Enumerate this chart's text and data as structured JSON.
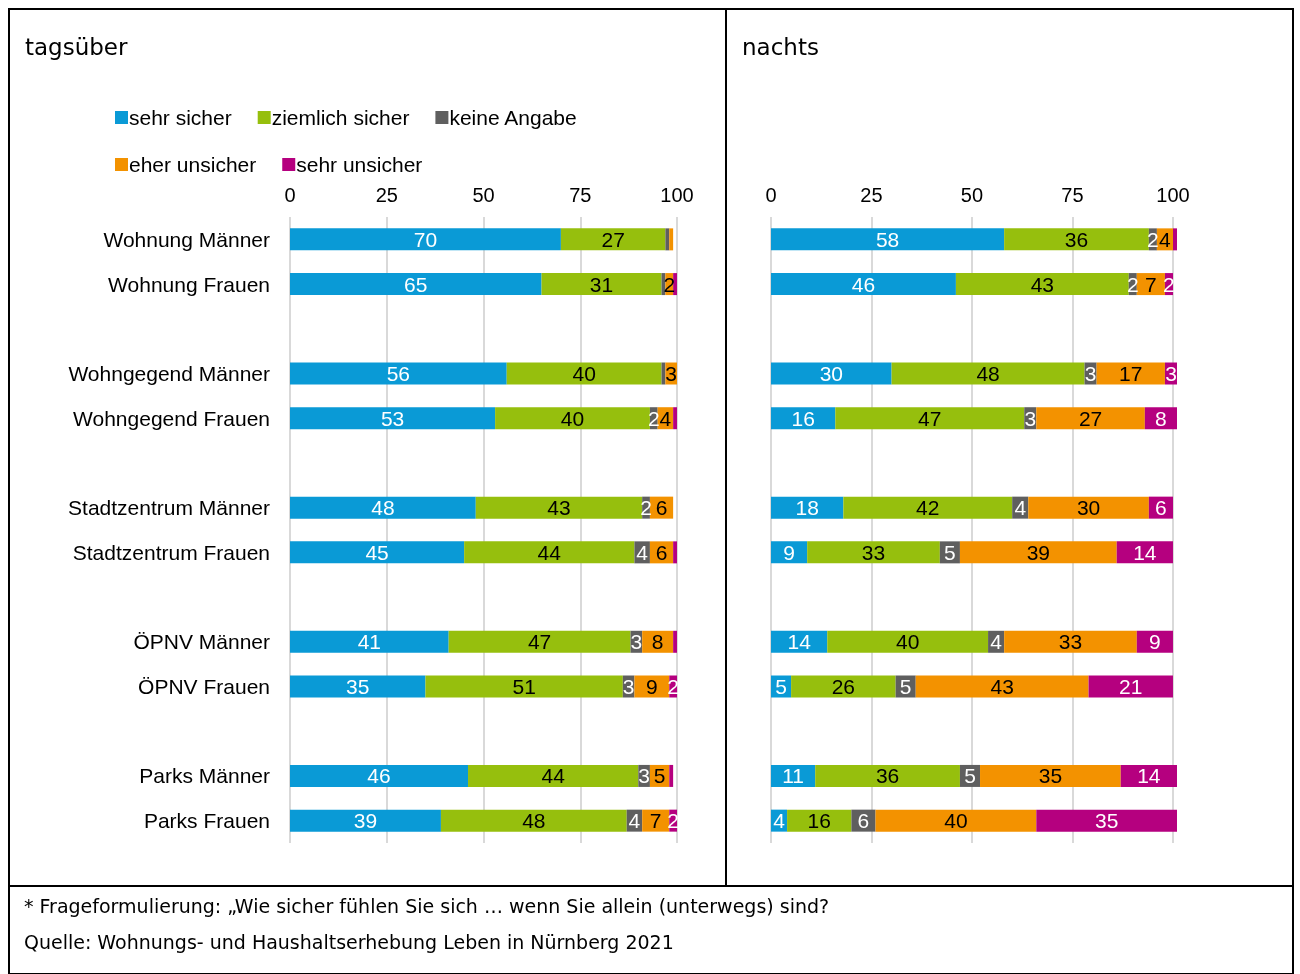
{
  "chart_data": [
    {
      "type": "bar",
      "title": "tagsüber",
      "orientation": "horizontal",
      "stacked": true,
      "grid": "x",
      "legend": "top",
      "xlim": [
        0,
        100
      ],
      "xticks": [
        0,
        25,
        50,
        75,
        100
      ],
      "categories": [
        "Wohnung Männer",
        "Wohnung Frauen",
        null,
        "Wohngegend Männer",
        "Wohngegend Frauen",
        null,
        "Stadtzentrum Männer",
        "Stadtzentrum Frauen",
        null,
        "ÖPNV Männer",
        "ÖPNV Frauen",
        null,
        "Parks Männer",
        "Parks Frauen"
      ],
      "series": [
        {
          "name": "sehr sicher",
          "color": "#0a9ad6",
          "values": [
            70,
            65,
            null,
            56,
            53,
            null,
            48,
            45,
            null,
            41,
            35,
            null,
            46,
            39
          ],
          "value_labels": [
            "70",
            "65",
            null,
            "56",
            "53",
            null,
            "48",
            "45",
            null,
            "41",
            "35",
            null,
            "46",
            "39"
          ]
        },
        {
          "name": "ziemlich sicher",
          "color": "#96bf0d",
          "values": [
            27,
            31,
            null,
            40,
            40,
            null,
            43,
            44,
            null,
            47,
            51,
            null,
            44,
            48
          ],
          "value_labels": [
            "27",
            "31",
            null,
            "40",
            "40",
            null,
            "43",
            "44",
            null,
            "47",
            "51",
            null,
            "44",
            "48"
          ]
        },
        {
          "name": "keine Angabe",
          "color": "#5f5f5f",
          "values": [
            1,
            1,
            null,
            1,
            2,
            null,
            2,
            4,
            null,
            3,
            3,
            null,
            3,
            4
          ],
          "value_labels": [
            null,
            null,
            null,
            null,
            "2",
            null,
            "2",
            "4",
            null,
            "3",
            "3",
            null,
            "3",
            "4"
          ]
        },
        {
          "name": "eher unsicher",
          "color": "#f39200",
          "values": [
            1,
            2,
            null,
            3,
            4,
            null,
            6,
            6,
            null,
            8,
            9,
            null,
            5,
            7
          ],
          "value_labels": [
            null,
            "2",
            null,
            "3",
            "4",
            null,
            "6",
            "6",
            null,
            "8",
            "9",
            null,
            "5",
            "7"
          ]
        },
        {
          "name": "sehr unsicher",
          "color": "#b5007f",
          "values": [
            0,
            1,
            null,
            0,
            1,
            null,
            0,
            1,
            null,
            1,
            2,
            null,
            1,
            2
          ],
          "value_labels": [
            null,
            null,
            null,
            null,
            null,
            null,
            null,
            null,
            null,
            null,
            "2",
            null,
            null,
            "2"
          ]
        }
      ],
      "annotations": [
        "* Frageformulierung: „Wie sicher fühlen Sie sich … wenn Sie allein (unterwegs) sind?",
        "Quelle: Wohnungs- und Haushaltserhebung Leben in Nürnberg 2021"
      ]
    },
    {
      "type": "bar",
      "title": "nachts",
      "orientation": "horizontal",
      "stacked": true,
      "grid": "x",
      "xlim": [
        0,
        101
      ],
      "xticks": [
        0,
        25,
        50,
        75,
        100
      ],
      "categories": [
        null,
        null,
        null,
        null,
        null,
        null,
        null,
        null,
        null,
        null,
        null,
        null,
        null,
        null
      ],
      "series": [
        {
          "color": "#0a9ad6",
          "values": [
            58,
            46,
            null,
            30,
            16,
            null,
            18,
            9,
            null,
            14,
            5,
            null,
            11,
            4
          ],
          "value_labels": [
            "58",
            "46",
            null,
            "30",
            "16",
            null,
            "18",
            "9",
            null,
            "14",
            "5",
            null,
            "11",
            "4"
          ]
        },
        {
          "color": "#96bf0d",
          "values": [
            36,
            43,
            null,
            48,
            47,
            null,
            42,
            33,
            null,
            40,
            26,
            null,
            36,
            16
          ],
          "value_labels": [
            "36",
            "43",
            null,
            "48",
            "47",
            null,
            "42",
            "33",
            null,
            "40",
            "26",
            null,
            "36",
            "16"
          ]
        },
        {
          "color": "#5f5f5f",
          "values": [
            2,
            2,
            null,
            3,
            3,
            null,
            4,
            5,
            null,
            4,
            5,
            null,
            5,
            6
          ],
          "value_labels": [
            "2",
            "2",
            null,
            "3",
            "3",
            null,
            "4",
            "5",
            null,
            "4",
            "5",
            null,
            "5",
            "6"
          ]
        },
        {
          "color": "#f39200",
          "values": [
            4,
            7,
            null,
            17,
            27,
            null,
            30,
            39,
            null,
            33,
            43,
            null,
            35,
            40
          ],
          "value_labels": [
            "4",
            "7",
            null,
            "17",
            "27",
            null,
            "30",
            "39",
            null,
            "33",
            "43",
            null,
            "35",
            "40"
          ]
        },
        {
          "color": "#b5007f",
          "values": [
            1,
            2,
            null,
            3,
            8,
            null,
            6,
            14,
            null,
            9,
            21,
            null,
            14,
            35
          ],
          "value_labels": [
            null,
            "2",
            null,
            "3",
            "8",
            null,
            "6",
            "14",
            null,
            "9",
            "21",
            null,
            "14",
            "35"
          ]
        }
      ]
    }
  ]
}
